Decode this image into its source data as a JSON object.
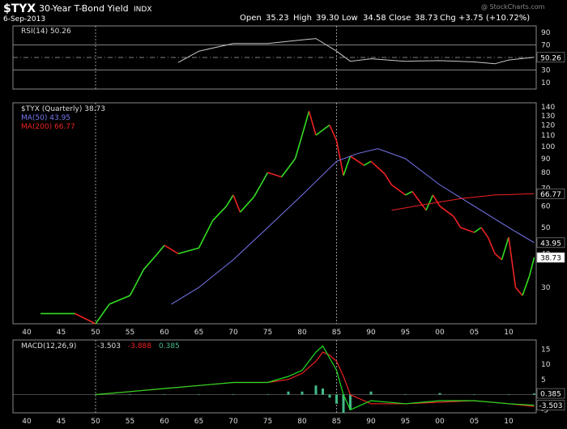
{
  "header": {
    "symbol": "$TYX",
    "name": "30-Year T-Bond Yield",
    "exchange": "INDX",
    "date": "6-Sep-2013",
    "watermark": "@ StockCharts.com",
    "open_label": "Open",
    "open": "35.23",
    "high_label": "High",
    "high": "39.30",
    "low_label": "Low",
    "low": "34.58",
    "close_label": "Close",
    "close": "38.73",
    "chg_label": "Chg",
    "chg": "+3.75 (+10.72%)"
  },
  "colors": {
    "background": "#000000",
    "up": "#33dd22",
    "down": "#ee2222",
    "ma50": "#7777ee",
    "ma200": "#ee2222",
    "rsi": "#c8c8c8",
    "macd": "#22dd22",
    "signal": "#ee2222",
    "hist": "#44bb88"
  },
  "chart_data": [
    {
      "type": "line",
      "panel": "rsi",
      "label": "RSI(14) 50.26",
      "y_ticks": [
        10,
        30,
        50,
        70,
        90
      ],
      "reference_lines": [
        30,
        50,
        70
      ],
      "ylim": [
        0,
        100
      ],
      "last_value": "50.26",
      "x": [
        1962,
        1965,
        1970,
        1975,
        1980,
        1982,
        1985,
        1987,
        1990,
        1995,
        2000,
        2005,
        2008,
        2010,
        2013.7
      ],
      "values": [
        42,
        60,
        72,
        72,
        78,
        80,
        60,
        44,
        48,
        44,
        45,
        43,
        40,
        46,
        50.26
      ]
    },
    {
      "type": "line",
      "panel": "price",
      "series_name": "$TYX (Quarterly) 38.73",
      "ma50_label": "MA(50) 43.95",
      "ma200_label": "MA(200) 66.77",
      "y_ticks": [
        30,
        40,
        50,
        60,
        70,
        80,
        90,
        100,
        110,
        120,
        130,
        140
      ],
      "log_scale": true,
      "badges": [
        "66.77",
        "43.95",
        "38.73"
      ],
      "x": [
        1942,
        1945,
        1947,
        1950,
        1952,
        1955,
        1957,
        1959,
        1960,
        1962,
        1965,
        1967,
        1969,
        1970,
        1971,
        1973,
        1974,
        1975,
        1977,
        1979,
        1980,
        1981,
        1982,
        1983,
        1984,
        1985,
        1986,
        1987,
        1989,
        1990,
        1992,
        1993,
        1995,
        1996,
        1998,
        1999,
        2000,
        2002,
        2003,
        2005,
        2006,
        2007,
        2008,
        2009,
        2010,
        2011,
        2012,
        2013,
        2013.7
      ],
      "values": [
        24,
        24,
        24,
        22,
        26,
        28,
        35,
        40,
        43,
        40,
        42,
        53,
        60,
        66,
        57,
        65,
        72,
        80,
        77,
        90,
        110,
        135,
        110,
        115,
        120,
        105,
        78,
        92,
        85,
        88,
        79,
        72,
        66,
        68,
        58,
        66,
        60,
        55,
        50,
        48,
        50,
        46,
        40,
        38,
        46,
        30,
        28,
        33,
        38.73
      ],
      "ma50": {
        "x": [
          1961,
          1965,
          1970,
          1975,
          1980,
          1985,
          1988,
          1991,
          1995,
          2000,
          2005,
          2010,
          2013.7
        ],
        "values": [
          26,
          30,
          38,
          50,
          66,
          88,
          94,
          98,
          90,
          72,
          60,
          50,
          43.95
        ]
      },
      "ma200": {
        "x": [
          1993,
          1998,
          2003,
          2008,
          2013.7
        ],
        "values": [
          58,
          61,
          64,
          66,
          66.77
        ]
      }
    },
    {
      "type": "line",
      "panel": "macd",
      "label": "MACD(12,26,9)",
      "macd_value": "-3.503",
      "signal_value": "-3.888",
      "hist_value": "0.385",
      "y_ticks": [
        -5,
        0,
        5,
        10,
        15
      ],
      "badges": [
        "0.385",
        "-3.503"
      ],
      "ylim": [
        -6,
        18
      ],
      "x": [
        1950,
        1955,
        1960,
        1965,
        1970,
        1975,
        1978,
        1980,
        1982,
        1983,
        1984,
        1985,
        1986,
        1987,
        1990,
        1995,
        2000,
        2005,
        2010,
        2013.7
      ],
      "macd": [
        0,
        1,
        2,
        3,
        4,
        4,
        6,
        8,
        14,
        16,
        12,
        8,
        0,
        -5,
        -2,
        -3,
        -2,
        -2,
        -3,
        -3.503
      ],
      "signal": [
        0,
        1,
        2,
        3,
        4,
        4,
        5,
        7,
        11,
        14,
        13,
        11,
        6,
        0,
        -3,
        -3,
        -2.5,
        -2,
        -3,
        -3.888
      ]
    }
  ],
  "x_axis": {
    "ticks": [
      "40",
      "45",
      "50",
      "55",
      "60",
      "65",
      "70",
      "75",
      "80",
      "85",
      "90",
      "95",
      "00",
      "05",
      "10"
    ],
    "tick_years": [
      1940,
      1945,
      1950,
      1955,
      1960,
      1965,
      1970,
      1975,
      1980,
      1985,
      1990,
      1995,
      2000,
      2005,
      2010
    ],
    "range": [
      1938,
      2014
    ],
    "vlines_years": [
      1950,
      1985
    ]
  }
}
